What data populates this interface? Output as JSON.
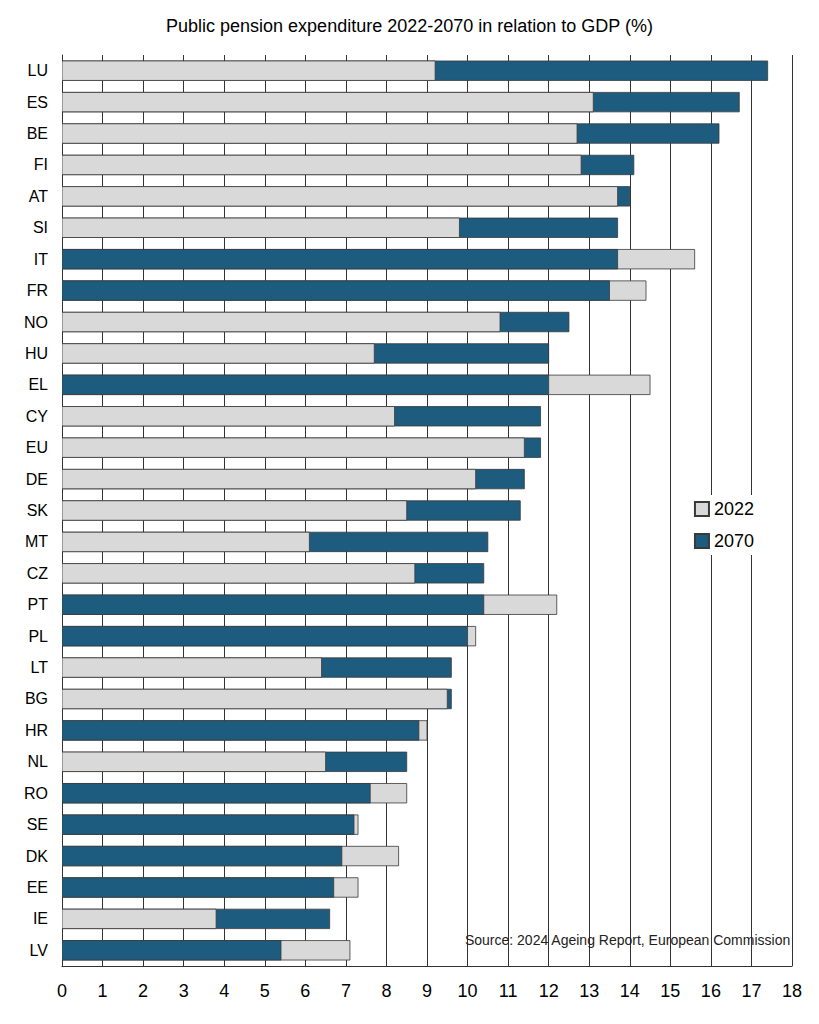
{
  "chart_data": {
    "type": "bar",
    "title": "Public pension expenditure 2022-2070 in relation to GDP (%)",
    "orientation": "horizontal",
    "categories": [
      "LU",
      "ES",
      "BE",
      "FI",
      "AT",
      "SI",
      "IT",
      "FR",
      "NO",
      "HU",
      "EL",
      "CY",
      "EU",
      "DE",
      "SK",
      "MT",
      "CZ",
      "PT",
      "PL",
      "LT",
      "BG",
      "HR",
      "NL",
      "RO",
      "SE",
      "DK",
      "EE",
      "IE",
      "LV"
    ],
    "series": [
      {
        "name": "2022",
        "color": "#d9d9d9",
        "values": [
          9.2,
          13.1,
          12.7,
          12.8,
          13.7,
          9.8,
          15.6,
          14.4,
          10.8,
          7.7,
          14.5,
          8.2,
          11.4,
          10.2,
          8.5,
          6.1,
          8.7,
          12.2,
          10.2,
          6.4,
          9.5,
          9.0,
          6.5,
          8.5,
          7.3,
          8.3,
          7.3,
          3.8,
          7.1
        ]
      },
      {
        "name": "2070",
        "color": "#1d5c7e",
        "values": [
          17.4,
          16.7,
          16.2,
          14.1,
          14.0,
          13.7,
          13.7,
          13.5,
          12.5,
          12.0,
          12.0,
          11.8,
          11.8,
          11.4,
          11.3,
          10.5,
          10.4,
          10.4,
          10.0,
          9.6,
          9.6,
          8.8,
          8.5,
          7.6,
          7.2,
          6.9,
          6.7,
          6.6,
          5.4
        ]
      }
    ],
    "xlim": [
      0,
      18
    ],
    "xticks": [
      0,
      1,
      2,
      3,
      4,
      5,
      6,
      7,
      8,
      9,
      10,
      11,
      12,
      13,
      14,
      15,
      16,
      17,
      18
    ],
    "grid": true,
    "legend": "right",
    "annotations": [
      "Source: 2024 Ageing Report, European Commission"
    ]
  }
}
